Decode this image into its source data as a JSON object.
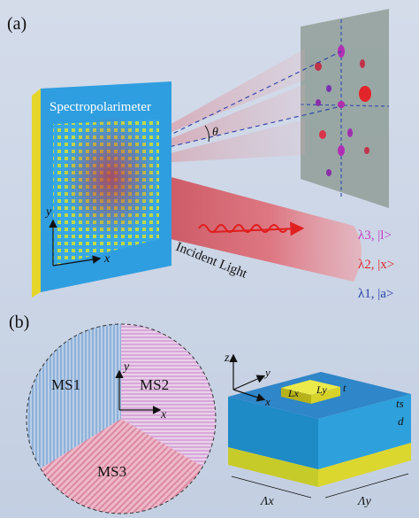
{
  "panel_a": {
    "label": "(a)",
    "device_title": "Spectropolarimeter",
    "angle_label": "θ",
    "axis_y": "y",
    "axis_x": "x",
    "incident_label": "Incident Light",
    "legend": [
      {
        "text": "λ3, |l>",
        "color": "#c43ac4"
      },
      {
        "text": "λ2, |x>",
        "color": "#e22a2a"
      },
      {
        "text": "λ1, |a>",
        "color": "#2b3fa8"
      }
    ]
  },
  "panel_b": {
    "label": "(b)",
    "regions": [
      "MS1",
      "MS2",
      "MS3"
    ],
    "axis_y": "y",
    "axis_x": "x",
    "unit_axes": {
      "z": "z",
      "y": "y",
      "x": "x"
    },
    "dims": {
      "lx": "Lx",
      "ly": "Ly",
      "t": "t",
      "ts": "ts",
      "d": "d",
      "period_x": "Λx",
      "period_y": "Λy"
    }
  }
}
